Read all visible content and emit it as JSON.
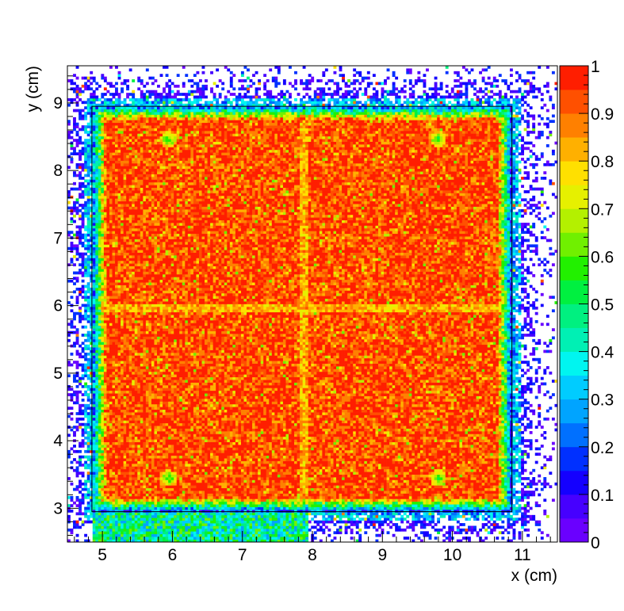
{
  "chart_data": {
    "type": "heatmap",
    "title": "",
    "xlabel": "x (cm)",
    "ylabel": "y (cm)",
    "xlim": [
      4.5,
      11.5
    ],
    "ylim": [
      2.5,
      9.55
    ],
    "x_ticks": [
      5,
      6,
      7,
      8,
      9,
      10,
      11
    ],
    "y_ticks": [
      3,
      4,
      5,
      6,
      7,
      8,
      9
    ],
    "z_range": [
      0,
      1
    ],
    "colorbar_ticks": [
      0,
      0.1,
      0.2,
      0.3,
      0.4,
      0.5,
      0.6,
      0.7,
      0.8,
      0.9,
      1
    ],
    "colorbar_tick_labels": [
      "0",
      "0.1",
      "0.2",
      "0.3",
      "0.4",
      "0.5",
      "0.6",
      "0.7",
      "0.8",
      "0.9",
      "1"
    ],
    "palette": [
      "#6a00ff",
      "#4600ff",
      "#1400ff",
      "#0030ff",
      "#0070ff",
      "#00a4ff",
      "#00ccff",
      "#00f5f0",
      "#00f0b4",
      "#00f080",
      "#00f040",
      "#22f000",
      "#70f000",
      "#b4f000",
      "#e6f000",
      "#ffe000",
      "#ffb000",
      "#ff8000",
      "#ff5000",
      "#ff1e00"
    ],
    "grid": false,
    "legend": "colorbar-right",
    "regions": {
      "active_square": {
        "x": [
          4.85,
          10.85
        ],
        "y": [
          2.95,
          8.95
        ],
        "value": 0.94
      },
      "dead_channels": [
        {
          "axis": "x",
          "at": 7.87,
          "value": 0.82
        },
        {
          "axis": "y",
          "at": 5.95,
          "value": 0.82
        }
      ],
      "edge_band": {
        "width_cm": 0.2,
        "value": 0.5
      },
      "low_efficiency_strip": {
        "x": [
          4.85,
          7.95
        ],
        "y": [
          2.5,
          2.95
        ],
        "value": 0.45
      },
      "spots": [
        {
          "x": 5.95,
          "y": 3.45
        },
        {
          "x": 9.8,
          "y": 3.45
        },
        {
          "x": 5.95,
          "y": 8.45
        },
        {
          "x": 9.8,
          "y": 8.45
        }
      ]
    }
  }
}
